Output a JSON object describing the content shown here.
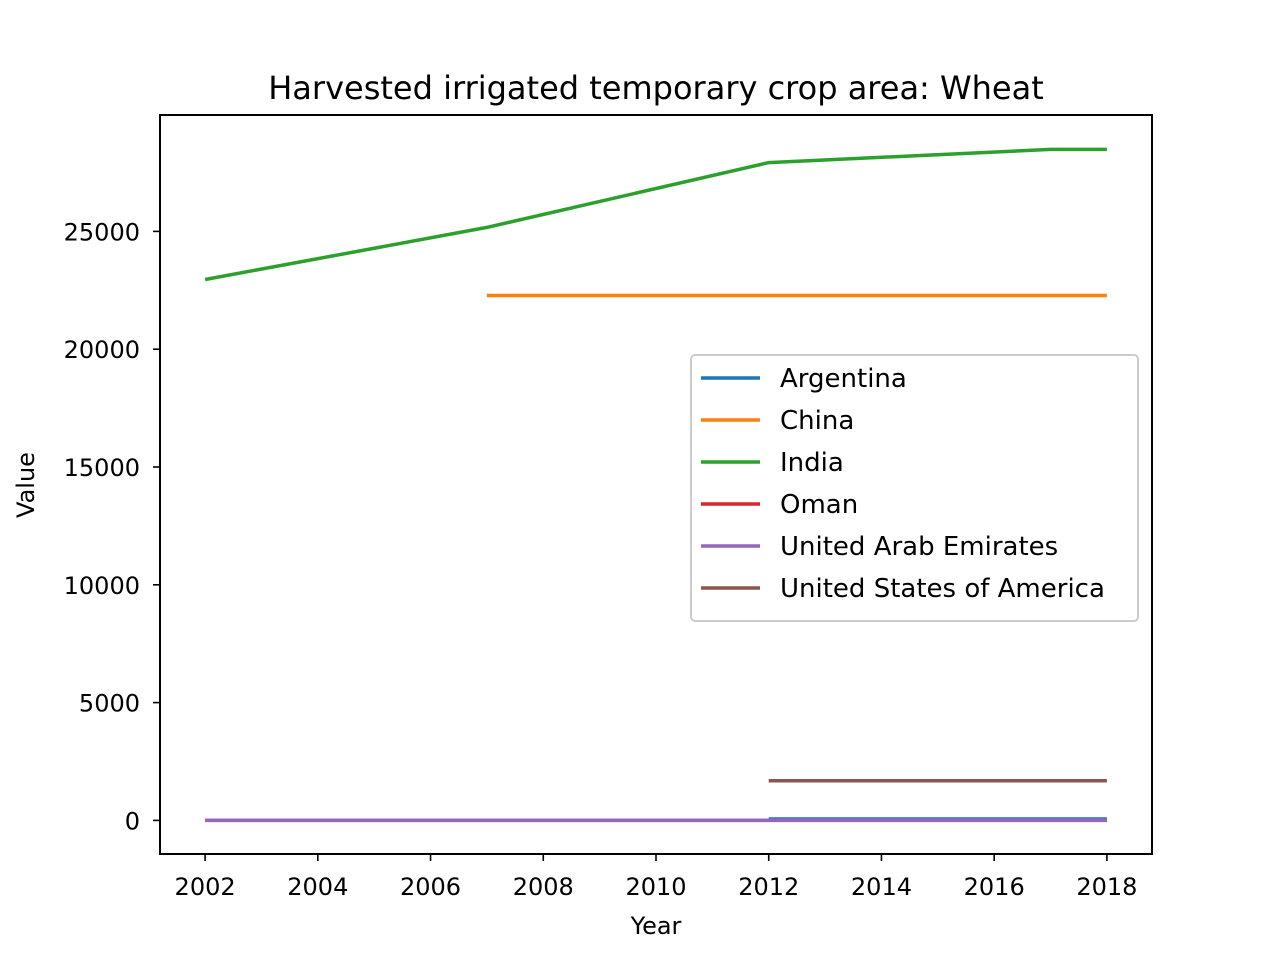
{
  "chart_data": {
    "type": "line",
    "title": "Harvested irrigated temporary crop area: Wheat",
    "xlabel": "Year",
    "ylabel": "Value",
    "xlim": [
      2001.2,
      2018.8
    ],
    "ylim": [
      -1426,
      29940
    ],
    "xticks": [
      2002,
      2004,
      2006,
      2008,
      2010,
      2012,
      2014,
      2016,
      2018
    ],
    "yticks": [
      0,
      5000,
      10000,
      15000,
      20000,
      25000
    ],
    "grid": false,
    "legend_position": "center-right",
    "series": [
      {
        "name": "Argentina",
        "color": "#1f77b4",
        "x": [
          2012,
          2018
        ],
        "y": [
          60,
          60
        ]
      },
      {
        "name": "China",
        "color": "#ff7f0e",
        "x": [
          2007,
          2018
        ],
        "y": [
          22280,
          22280
        ]
      },
      {
        "name": "India",
        "color": "#2ca02c",
        "x": [
          2002,
          2007,
          2012,
          2017,
          2018
        ],
        "y": [
          22960,
          25170,
          27920,
          28480,
          28480
        ]
      },
      {
        "name": "Oman",
        "color": "#d62728",
        "x": [
          2002,
          2012,
          2018
        ],
        "y": [
          2,
          2,
          2
        ]
      },
      {
        "name": "United Arab Emirates",
        "color": "#9467bd",
        "x": [
          2002,
          2012,
          2018
        ],
        "y": [
          5,
          5,
          5
        ]
      },
      {
        "name": "United States of America",
        "color": "#8c564b",
        "x": [
          2012,
          2018
        ],
        "y": [
          1680,
          1680
        ]
      }
    ]
  }
}
